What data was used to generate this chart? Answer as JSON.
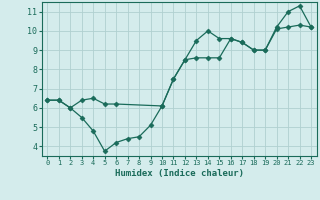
{
  "line1_x": [
    0,
    1,
    2,
    3,
    4,
    5,
    6,
    7,
    8,
    9,
    10,
    11,
    12,
    13,
    14,
    15,
    16,
    17,
    18,
    19,
    20,
    21,
    22,
    23
  ],
  "line1_y": [
    6.4,
    6.4,
    6.0,
    5.5,
    4.8,
    3.75,
    4.2,
    4.4,
    4.5,
    5.1,
    6.1,
    7.5,
    8.5,
    9.5,
    10.0,
    9.6,
    9.6,
    9.4,
    9.0,
    9.0,
    10.2,
    11.0,
    11.3,
    10.2
  ],
  "line2_x": [
    0,
    1,
    2,
    3,
    4,
    5,
    6,
    10,
    11,
    12,
    13,
    14,
    15,
    16,
    17,
    18,
    19,
    20,
    21,
    22,
    23
  ],
  "line2_y": [
    6.4,
    6.4,
    6.0,
    6.4,
    6.5,
    6.2,
    6.2,
    6.1,
    7.5,
    8.5,
    8.6,
    8.6,
    8.6,
    9.6,
    9.4,
    9.0,
    9.0,
    10.1,
    10.2,
    10.3,
    10.2
  ],
  "line_color": "#1a6b5a",
  "bg_color": "#d4ecec",
  "grid_color": "#b0d0d0",
  "xlabel": "Humidex (Indice chaleur)",
  "xlim": [
    -0.5,
    23.5
  ],
  "ylim": [
    3.5,
    11.5
  ],
  "yticks": [
    4,
    5,
    6,
    7,
    8,
    9,
    10,
    11
  ],
  "xticks": [
    0,
    1,
    2,
    3,
    4,
    5,
    6,
    7,
    8,
    9,
    10,
    11,
    12,
    13,
    14,
    15,
    16,
    17,
    18,
    19,
    20,
    21,
    22,
    23
  ]
}
